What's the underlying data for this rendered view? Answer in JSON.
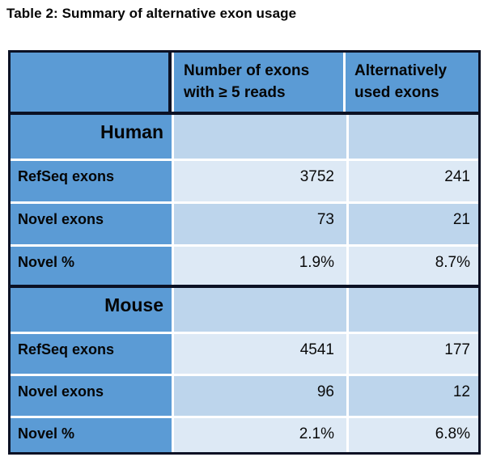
{
  "title": "Table 2: Summary of alternative exon usage",
  "colors": {
    "header_blue": "#5b9bd5",
    "band_dark": "#bdd5ec",
    "band_light": "#dde9f5",
    "border_dark": "#0b1124",
    "divider_white": "#ffffff",
    "text": "#050505"
  },
  "table": {
    "header": {
      "col1": "",
      "col2": "Number of exons\nwith ≥ 5 reads",
      "col3": "Alternatively\nused exons"
    },
    "sections": [
      {
        "name": "Human",
        "rows": [
          {
            "label": "RefSeq exons",
            "exons_5reads": "3752",
            "alt_used": "241"
          },
          {
            "label": "Novel exons",
            "exons_5reads": "73",
            "alt_used": "21"
          },
          {
            "label": "Novel %",
            "exons_5reads": "1.9%",
            "alt_used": "8.7%"
          }
        ]
      },
      {
        "name": "Mouse",
        "rows": [
          {
            "label": "RefSeq exons",
            "exons_5reads": "4541",
            "alt_used": "177"
          },
          {
            "label": "Novel exons",
            "exons_5reads": "96",
            "alt_used": "12"
          },
          {
            "label": "Novel %",
            "exons_5reads": "2.1%",
            "alt_used": "6.8%"
          }
        ]
      }
    ]
  }
}
